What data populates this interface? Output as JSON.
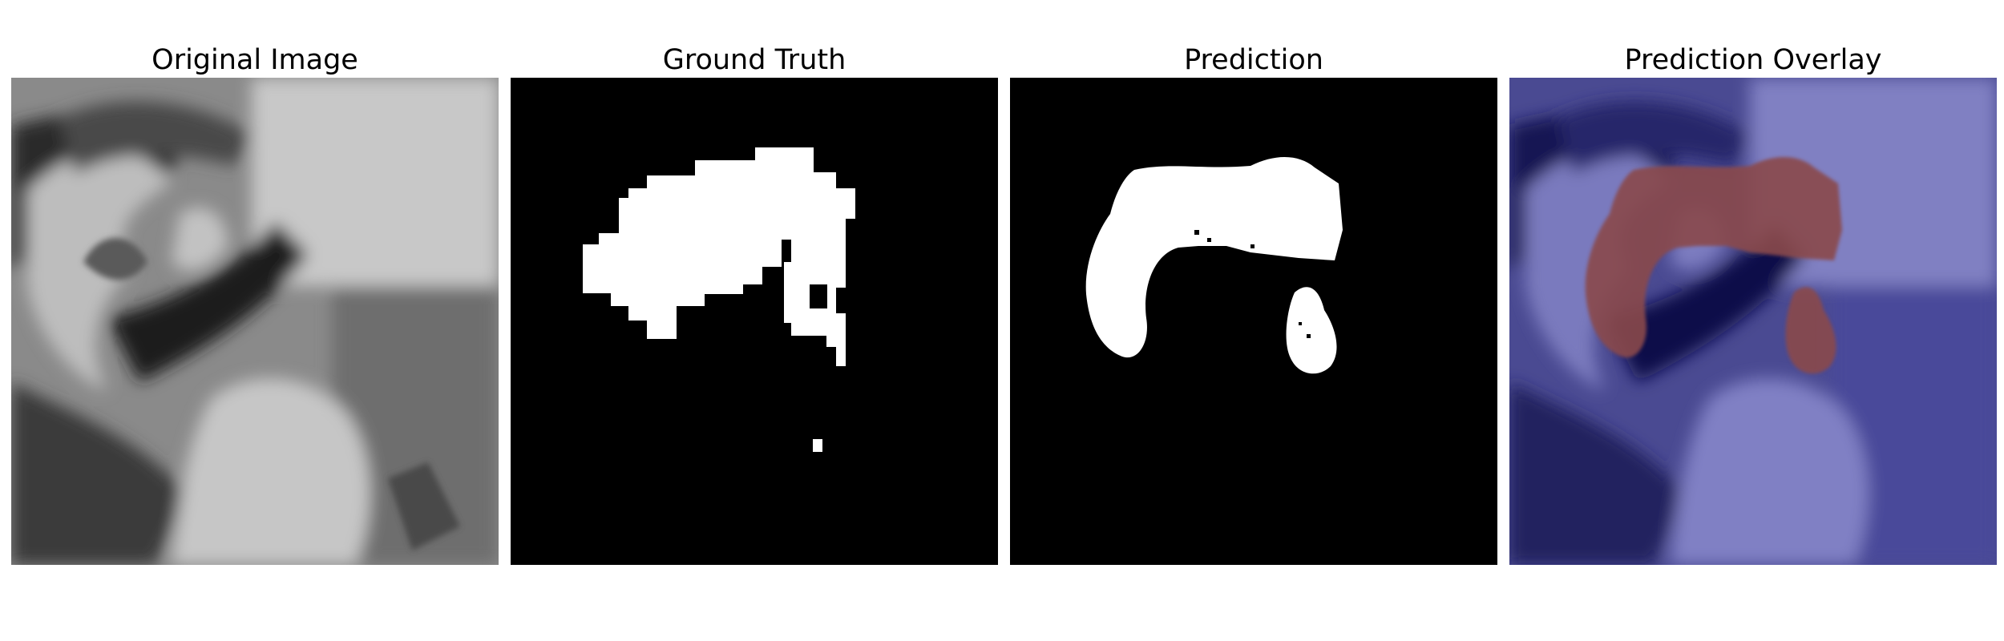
{
  "panels": [
    {
      "title": "Original Image",
      "kind": "grayscale-scan"
    },
    {
      "title": "Ground Truth",
      "kind": "binary-mask"
    },
    {
      "title": "Prediction",
      "kind": "binary-mask"
    },
    {
      "title": "Prediction Overlay",
      "kind": "colormap-overlay"
    }
  ],
  "colors": {
    "background": "#ffffff",
    "mask_foreground": "#ffffff",
    "mask_background": "#000000",
    "overlay_base": "#0b0b55",
    "overlay_mid": "#6e6eb4",
    "overlay_region": "#8a4a4c"
  }
}
